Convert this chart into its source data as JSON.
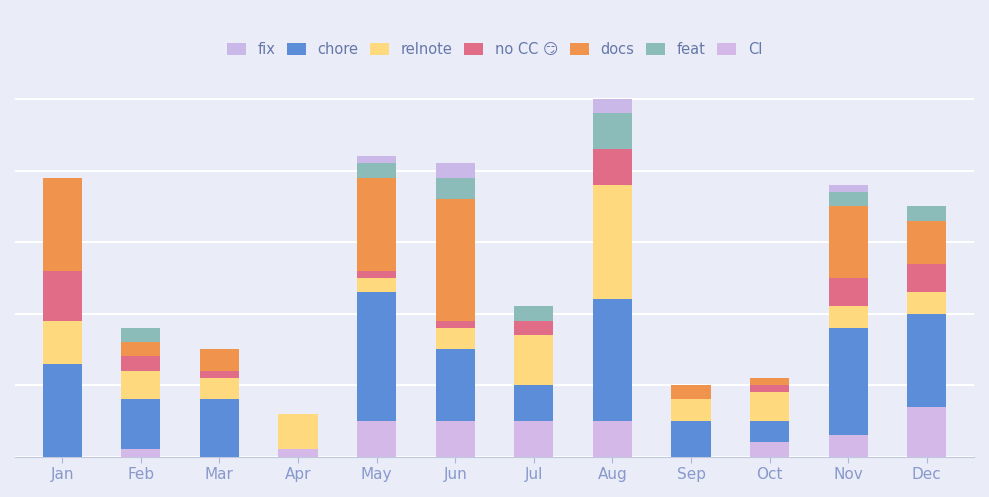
{
  "months": [
    "Jan",
    "Feb",
    "Mar",
    "Apr",
    "May",
    "Jun",
    "Jul",
    "Aug",
    "Sep",
    "Oct",
    "Nov",
    "Dec"
  ],
  "series": {
    "CI": [
      0,
      1,
      0,
      1,
      5,
      5,
      5,
      5,
      0,
      2,
      3,
      7
    ],
    "chore": [
      13,
      7,
      8,
      0,
      18,
      10,
      5,
      17,
      5,
      3,
      15,
      13
    ],
    "relnote": [
      6,
      4,
      3,
      5,
      2,
      3,
      7,
      16,
      3,
      4,
      3,
      3
    ],
    "no CC": [
      7,
      2,
      1,
      0,
      1,
      1,
      2,
      5,
      0,
      1,
      4,
      4
    ],
    "docs": [
      13,
      2,
      3,
      0,
      13,
      17,
      0,
      0,
      2,
      1,
      10,
      6
    ],
    "feat": [
      0,
      2,
      0,
      0,
      2,
      3,
      2,
      5,
      0,
      0,
      2,
      2
    ],
    "fix": [
      0,
      0,
      0,
      0,
      1,
      2,
      0,
      2,
      0,
      0,
      1,
      0
    ]
  },
  "colors": {
    "CI": "#d4b8e8",
    "chore": "#5b8dd9",
    "relnote": "#ffd97d",
    "no CC": "#e06c87",
    "docs": "#f0944d",
    "feat": "#8bbcba",
    "fix": "#c9b8e8"
  },
  "legend_order": [
    "fix",
    "chore",
    "relnote",
    "no CC",
    "docs",
    "feat",
    "CI"
  ],
  "legend_labels": [
    "fix",
    "chore",
    "relnote",
    "no CC 😏",
    "docs",
    "feat",
    "CI"
  ],
  "background_color": "#eaecf7",
  "grid_color": "#ffffff",
  "bar_width": 0.5,
  "tick_color": "#8899cc",
  "tick_fontsize": 11
}
